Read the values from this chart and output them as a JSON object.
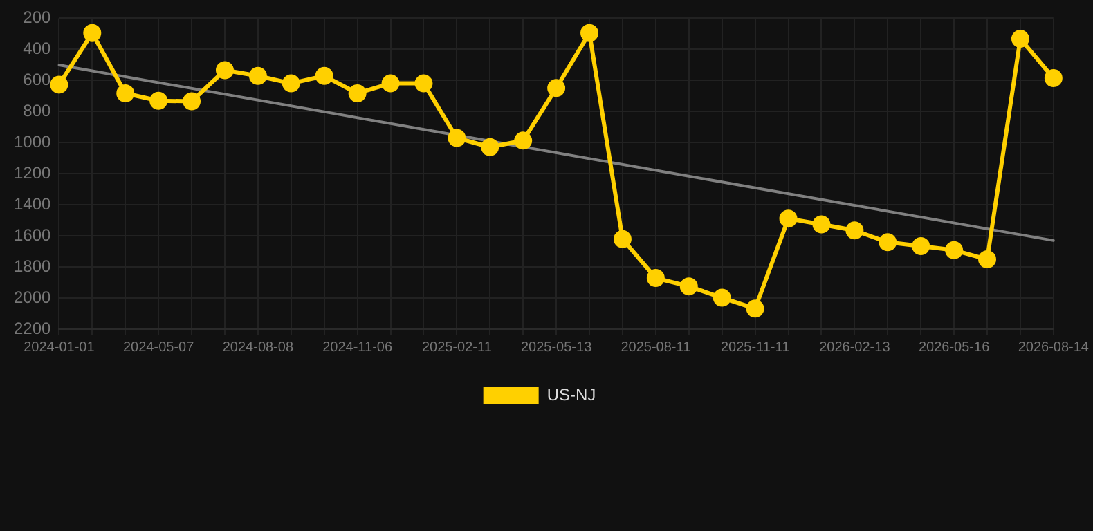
{
  "chart_data": {
    "type": "line",
    "categories": [
      "2024-01-01",
      null,
      null,
      "2024-05-07",
      null,
      null,
      "2024-08-08",
      null,
      null,
      "2024-11-06",
      null,
      null,
      "2025-02-11",
      null,
      null,
      "2025-05-13",
      null,
      null,
      "2025-08-11",
      null,
      null,
      "2025-11-11",
      null,
      null,
      "2026-02-13",
      null,
      null,
      "2026-05-16",
      null,
      null,
      "2026-08-14"
    ],
    "series": [
      {
        "name": "US-NJ",
        "color": "#ffd000",
        "marker": "circle",
        "values": [
          627,
          295,
          683,
          731,
          734,
          534,
          571,
          619,
          571,
          683,
          619,
          619,
          970,
          1029,
          987,
          649,
          295,
          1621,
          1871,
          1925,
          1998,
          2068,
          1489,
          1526,
          1565,
          1641,
          1666,
          1692,
          1751,
          332,
          585
        ]
      },
      {
        "type": "line",
        "color": "#808080",
        "marker": "none",
        "values": [
          501,
          null,
          null,
          null,
          null,
          null,
          null,
          null,
          null,
          null,
          null,
          null,
          null,
          null,
          null,
          null,
          null,
          null,
          null,
          null,
          null,
          null,
          null,
          null,
          null,
          null,
          null,
          null,
          null,
          null,
          1630
        ]
      }
    ],
    "ylim": [
      2200,
      200
    ],
    "yticks": [
      200,
      400,
      600,
      800,
      1000,
      1200,
      1400,
      1600,
      1800,
      2000,
      2200
    ],
    "grid": true,
    "legend": "bottom"
  }
}
